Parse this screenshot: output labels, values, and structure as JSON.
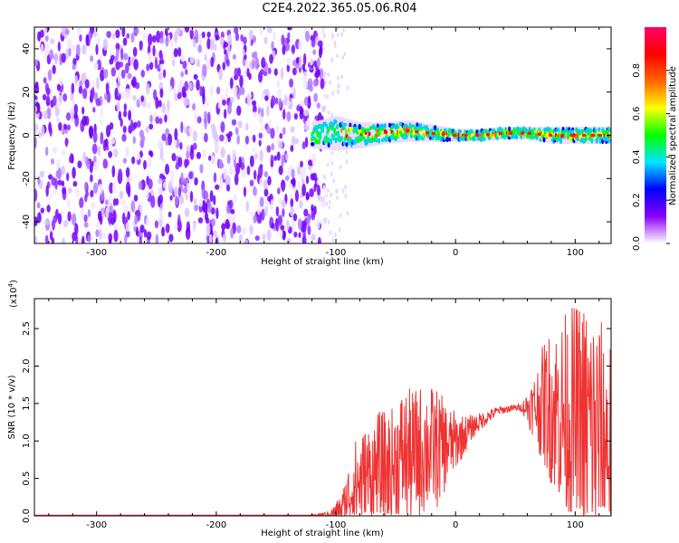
{
  "title": "C2E4.2022.365.05.06.R04",
  "chart_data": [
    {
      "type": "heatmap",
      "xlabel": "Height of straight line (km)",
      "ylabel": "Frequency (Hz)",
      "xlim": [
        -352,
        130
      ],
      "ylim": [
        -50,
        50
      ],
      "xticks": [
        -300,
        -200,
        -100,
        0,
        100
      ],
      "xtick_labels": [
        "-300",
        "-200",
        "-100",
        "0",
        "100"
      ],
      "yticks": [
        -40,
        -20,
        0,
        20,
        40
      ],
      "ytick_labels": [
        "-40",
        "-20",
        "0",
        "20",
        "40"
      ],
      "colorbar": {
        "label": "Normalized spectral amplitude",
        "range": [
          0,
          1
        ],
        "ticks": [
          0.0,
          0.2,
          0.4,
          0.6,
          0.8
        ],
        "tick_labels": [
          "0.0",
          "0.2",
          "0.4",
          "0.6",
          "0.8"
        ],
        "colormap": [
          "#ffffff",
          "#8a00ff",
          "#0000ff",
          "#00e5ff",
          "#00ff00",
          "#ffff00",
          "#ff6600",
          "#ff0000",
          "#ff0066"
        ]
      },
      "noise_region_x": [
        -352,
        -110
      ],
      "signal_band": {
        "x": [
          -120,
          -100,
          -80,
          -60,
          -40,
          -20,
          0,
          20,
          40,
          60,
          80,
          100,
          130
        ],
        "center_freq": [
          0,
          1,
          0,
          1,
          2,
          1,
          0,
          0,
          1,
          1,
          0,
          0,
          0
        ],
        "half_width": [
          6,
          8,
          6,
          5,
          5,
          4,
          3,
          3,
          3,
          3,
          4,
          4,
          4
        ]
      },
      "grid": false
    },
    {
      "type": "line",
      "xlabel": "Height of straight line (km)",
      "ylabel": "SNR (10 * v/v)",
      "yscale_label": "(x10",
      "yscale_exp": "4",
      "xlim": [
        -352,
        130
      ],
      "ylim": [
        0,
        2.9
      ],
      "xticks": [
        -300,
        -200,
        -100,
        0,
        100
      ],
      "xtick_labels": [
        "-300",
        "-200",
        "-100",
        "0",
        "100"
      ],
      "yticks": [
        0.0,
        0.5,
        1.0,
        1.5,
        2.0,
        2.5
      ],
      "ytick_labels": [
        "0.0",
        "0.5",
        "1.0",
        "1.5",
        "2.0",
        "2.5"
      ],
      "color": "#ee3333",
      "series": [
        {
          "x": [
            -352,
            -300,
            -250,
            -200,
            -150,
            -120,
            -105,
            -95,
            -85,
            -75,
            -65,
            -55,
            -45,
            -35,
            -25,
            -15,
            -5,
            5,
            15,
            25,
            35,
            45,
            55,
            65,
            75,
            85,
            95,
            105,
            115,
            125,
            130
          ],
          "values": [
            0.01,
            0.01,
            0.01,
            0.01,
            0.01,
            0.01,
            0.02,
            0.1,
            0.4,
            0.5,
            0.6,
            0.6,
            0.8,
            0.8,
            0.9,
            0.9,
            0.95,
            1.05,
            1.2,
            1.3,
            1.4,
            1.43,
            1.45,
            1.45,
            1.5,
            1.4,
            1.3,
            1.2,
            1.1,
            1.0,
            1.0
          ],
          "amplitude": [
            0.0,
            0.0,
            0.0,
            0.0,
            0.0,
            0.0,
            0.05,
            0.2,
            0.6,
            0.7,
            0.8,
            0.8,
            0.9,
            0.9,
            0.9,
            0.8,
            0.5,
            0.3,
            0.15,
            0.1,
            0.06,
            0.05,
            0.05,
            0.4,
            0.9,
            1.2,
            1.5,
            1.7,
            1.8,
            1.5,
            1.4
          ]
        }
      ],
      "grid": false
    }
  ]
}
